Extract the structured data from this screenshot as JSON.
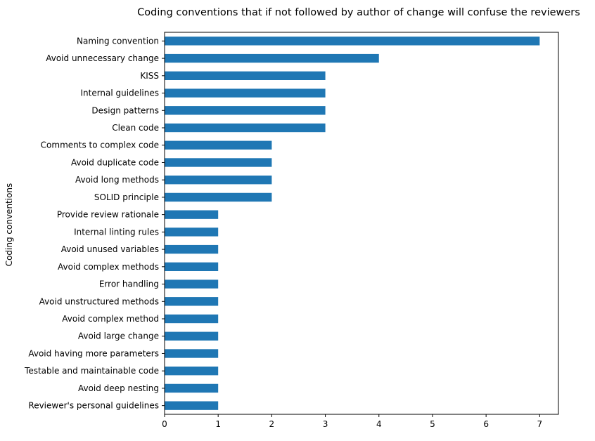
{
  "chart_data": {
    "type": "bar",
    "orientation": "horizontal",
    "title": "Coding conventions that if not followed by author of change will confuse the reviewers",
    "xlabel": "",
    "ylabel": "Coding conventions",
    "xlim": [
      0,
      7.35
    ],
    "xticks": [
      0,
      1,
      2,
      3,
      4,
      5,
      6,
      7
    ],
    "grid": false,
    "legend": "none",
    "bar_color": "#1f77b4",
    "categories": [
      "Naming convention",
      "Avoid unnecessary change",
      "KISS",
      "Internal guidelines",
      "Design patterns",
      "Clean code",
      "Comments to complex code",
      "Avoid duplicate code",
      "Avoid long methods",
      "SOLID principle",
      "Provide review rationale",
      "Internal linting rules",
      "Avoid unused variables",
      "Avoid complex methods",
      "Error handling",
      "Avoid unstructured methods",
      "Avoid complex method",
      "Avoid large change",
      "Avoid having more parameters",
      "Testable and maintainable code",
      "Avoid deep nesting",
      "Reviewer's personal guidelines"
    ],
    "values": [
      7,
      4,
      3,
      3,
      3,
      3,
      2,
      2,
      2,
      2,
      1,
      1,
      1,
      1,
      1,
      1,
      1,
      1,
      1,
      1,
      1,
      1
    ]
  }
}
